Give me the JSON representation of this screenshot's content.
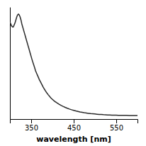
{
  "chart_data": {
    "type": "line",
    "xlabel": "wavelength [nm]",
    "x": [
      300,
      302,
      304,
      306,
      308,
      310,
      312,
      314,
      316,
      318,
      320,
      322,
      324,
      326,
      328,
      330,
      332,
      334,
      336,
      338,
      340,
      342,
      344,
      346,
      348,
      350,
      352,
      355,
      358,
      360,
      363,
      366,
      369,
      372,
      375,
      378,
      381,
      384,
      387,
      390,
      393,
      396,
      400,
      405,
      410,
      415,
      420,
      425,
      430,
      435,
      440,
      445,
      450,
      455,
      460,
      465,
      470,
      475,
      480,
      485,
      490,
      495,
      500,
      505,
      510,
      515,
      520,
      525,
      530,
      535,
      540,
      545,
      550,
      555,
      560,
      565,
      570,
      575,
      580,
      585,
      590,
      595,
      600
    ],
    "values": [
      0.95,
      0.93,
      0.91,
      0.9,
      0.9,
      0.92,
      0.94,
      0.97,
      1.0,
      1.02,
      1.03,
      1.02,
      1.0,
      0.97,
      0.93,
      0.9,
      0.87,
      0.84,
      0.81,
      0.78,
      0.75,
      0.72,
      0.69,
      0.66,
      0.63,
      0.6,
      0.57,
      0.53,
      0.49,
      0.46,
      0.43,
      0.4,
      0.37,
      0.345,
      0.32,
      0.295,
      0.272,
      0.252,
      0.233,
      0.216,
      0.2,
      0.185,
      0.168,
      0.15,
      0.135,
      0.121,
      0.109,
      0.098,
      0.088,
      0.079,
      0.071,
      0.064,
      0.058,
      0.052,
      0.047,
      0.042,
      0.038,
      0.034,
      0.031,
      0.028,
      0.025,
      0.023,
      0.021,
      0.019,
      0.017,
      0.016,
      0.014,
      0.013,
      0.012,
      0.011,
      0.01,
      0.009,
      0.009,
      0.008,
      0.008,
      0.007,
      0.007,
      0.007,
      0.006,
      0.006,
      0.006,
      0.006,
      0.005
    ],
    "color": "#2a2a2a",
    "xlim": [
      300,
      600
    ],
    "ylim": [
      -0.03,
      1.1
    ],
    "xticks": [
      350,
      450,
      550
    ],
    "yticks": [],
    "tick_labels": "x"
  }
}
